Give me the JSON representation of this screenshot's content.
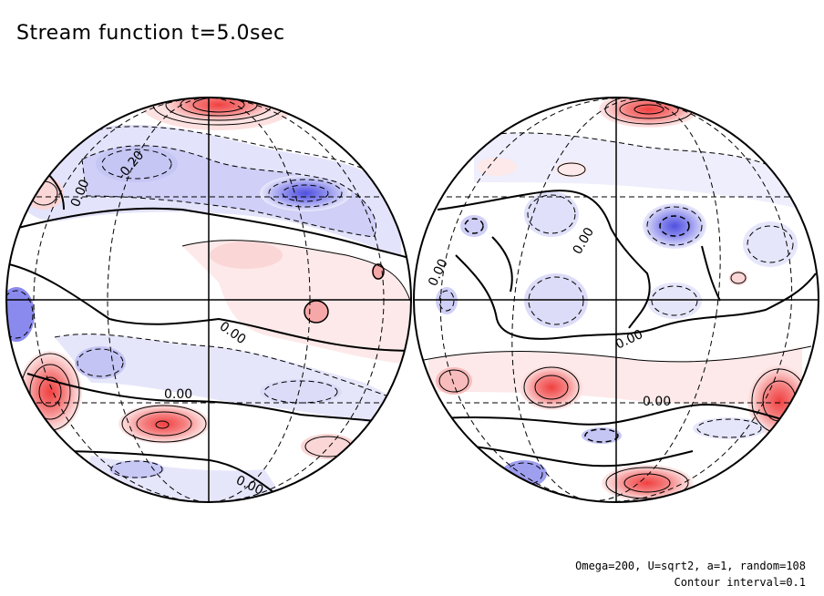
{
  "title": "Stream function t=5.0sec",
  "footer": {
    "params": "Omega=200, U=sqrt2, a=1, random=108",
    "interval": "Contour interval=0.1"
  },
  "contour_labels": {
    "left_a": "0.00",
    "left_b": "-0.20",
    "left_c": "0.00",
    "left_d": "0.00",
    "left_e": "0.00",
    "right_a": "0.00",
    "right_b": "0.00",
    "right_c": "0.00",
    "right_d": "0.00"
  },
  "colors": {
    "positive": "#f04848",
    "positive_light": "#fde9e9",
    "negative": "#5a5ae6",
    "negative_light": "#eaeafc"
  }
}
